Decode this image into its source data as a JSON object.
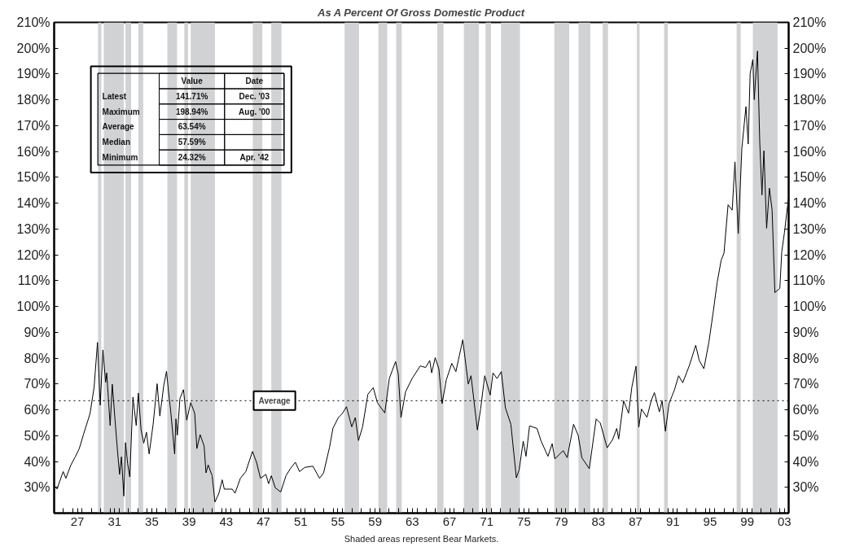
{
  "chart_data": {
    "type": "line",
    "title": "As A Percent Of Gross Domestic Product",
    "xlim": [
      1924.5,
      2003.45
    ],
    "ylim": [
      20,
      210
    ],
    "y2lim": [
      20,
      210
    ],
    "xticks": [
      {
        "value": 1925.5,
        "label": null
      },
      {
        "value": 1926.5,
        "label": null
      },
      {
        "value": 1927,
        "label": "27"
      },
      {
        "value": 1927.5,
        "label": null
      },
      {
        "value": 1928.5,
        "label": null
      },
      {
        "value": 1929.5,
        "label": null
      },
      {
        "value": 1930.5,
        "label": null
      },
      {
        "value": 1931,
        "label": "31"
      },
      {
        "value": 1931.5,
        "label": null
      },
      {
        "value": 1932.5,
        "label": null
      },
      {
        "value": 1933.5,
        "label": null
      },
      {
        "value": 1934.5,
        "label": null
      },
      {
        "value": 1935,
        "label": "35"
      },
      {
        "value": 1935.5,
        "label": null
      },
      {
        "value": 1936.5,
        "label": null
      },
      {
        "value": 1937.5,
        "label": null
      },
      {
        "value": 1938.5,
        "label": null
      },
      {
        "value": 1939,
        "label": "39"
      },
      {
        "value": 1939.5,
        "label": null
      },
      {
        "value": 1940.5,
        "label": null
      },
      {
        "value": 1941.5,
        "label": null
      },
      {
        "value": 1942.5,
        "label": null
      },
      {
        "value": 1943,
        "label": "43"
      },
      {
        "value": 1943.5,
        "label": null
      },
      {
        "value": 1944.5,
        "label": null
      },
      {
        "value": 1945.5,
        "label": null
      },
      {
        "value": 1946.5,
        "label": null
      },
      {
        "value": 1947,
        "label": "47"
      },
      {
        "value": 1947.5,
        "label": null
      },
      {
        "value": 1948.5,
        "label": null
      },
      {
        "value": 1949.5,
        "label": null
      },
      {
        "value": 1950.5,
        "label": null
      },
      {
        "value": 1951,
        "label": "51"
      },
      {
        "value": 1951.5,
        "label": null
      },
      {
        "value": 1952.5,
        "label": null
      },
      {
        "value": 1953.5,
        "label": null
      },
      {
        "value": 1954.5,
        "label": null
      },
      {
        "value": 1955,
        "label": "55"
      },
      {
        "value": 1955.5,
        "label": null
      },
      {
        "value": 1956.5,
        "label": null
      },
      {
        "value": 1957.5,
        "label": null
      },
      {
        "value": 1958.5,
        "label": null
      },
      {
        "value": 1959,
        "label": "59"
      },
      {
        "value": 1959.5,
        "label": null
      },
      {
        "value": 1960.5,
        "label": null
      },
      {
        "value": 1961.5,
        "label": null
      },
      {
        "value": 1962.5,
        "label": null
      },
      {
        "value": 1963,
        "label": "63"
      },
      {
        "value": 1963.5,
        "label": null
      },
      {
        "value": 1964.5,
        "label": null
      },
      {
        "value": 1965.5,
        "label": null
      },
      {
        "value": 1966.5,
        "label": null
      },
      {
        "value": 1967,
        "label": "67"
      },
      {
        "value": 1967.5,
        "label": null
      },
      {
        "value": 1968.5,
        "label": null
      },
      {
        "value": 1969.5,
        "label": null
      },
      {
        "value": 1970.5,
        "label": null
      },
      {
        "value": 1971,
        "label": "71"
      },
      {
        "value": 1971.5,
        "label": null
      },
      {
        "value": 1972.5,
        "label": null
      },
      {
        "value": 1973.5,
        "label": null
      },
      {
        "value": 1974.5,
        "label": null
      },
      {
        "value": 1975,
        "label": "75"
      },
      {
        "value": 1975.5,
        "label": null
      },
      {
        "value": 1976.5,
        "label": null
      },
      {
        "value": 1977.5,
        "label": null
      },
      {
        "value": 1978.5,
        "label": null
      },
      {
        "value": 1979,
        "label": "79"
      },
      {
        "value": 1979.5,
        "label": null
      },
      {
        "value": 1980.5,
        "label": null
      },
      {
        "value": 1981.5,
        "label": null
      },
      {
        "value": 1982.5,
        "label": null
      },
      {
        "value": 1983,
        "label": "83"
      },
      {
        "value": 1983.5,
        "label": null
      },
      {
        "value": 1984.5,
        "label": null
      },
      {
        "value": 1985.5,
        "label": null
      },
      {
        "value": 1986.5,
        "label": null
      },
      {
        "value": 1987,
        "label": "87"
      },
      {
        "value": 1987.5,
        "label": null
      },
      {
        "value": 1988.5,
        "label": null
      },
      {
        "value": 1989.5,
        "label": null
      },
      {
        "value": 1990.5,
        "label": null
      },
      {
        "value": 1991,
        "label": "91"
      },
      {
        "value": 1991.5,
        "label": null
      },
      {
        "value": 1992.5,
        "label": null
      },
      {
        "value": 1993.5,
        "label": null
      },
      {
        "value": 1994.5,
        "label": null
      },
      {
        "value": 1995,
        "label": "95"
      },
      {
        "value": 1995.5,
        "label": null
      },
      {
        "value": 1996.5,
        "label": null
      },
      {
        "value": 1997.5,
        "label": null
      },
      {
        "value": 1998.5,
        "label": null
      },
      {
        "value": 1999,
        "label": "99"
      },
      {
        "value": 1999.5,
        "label": null
      },
      {
        "value": 2000.5,
        "label": null
      },
      {
        "value": 2001.5,
        "label": null
      },
      {
        "value": 2002.5,
        "label": null
      },
      {
        "value": 2003,
        "label": "03"
      }
    ],
    "yticks": [
      {
        "value": 30,
        "label": "30%"
      },
      {
        "value": 40,
        "label": "40%"
      },
      {
        "value": 50,
        "label": "50%"
      },
      {
        "value": 60,
        "label": "60%"
      },
      {
        "value": 70,
        "label": "70%"
      },
      {
        "value": 80,
        "label": "80%"
      },
      {
        "value": 90,
        "label": "90%"
      },
      {
        "value": 100,
        "label": "100%"
      },
      {
        "value": 110,
        "label": "110%"
      },
      {
        "value": 120,
        "label": "120%"
      },
      {
        "value": 130,
        "label": "130%"
      },
      {
        "value": 140,
        "label": "140%"
      },
      {
        "value": 150,
        "label": "150%"
      },
      {
        "value": 160,
        "label": "160%"
      },
      {
        "value": 170,
        "label": "170%"
      },
      {
        "value": 180,
        "label": "180%"
      },
      {
        "value": 190,
        "label": "190%"
      },
      {
        "value": 200,
        "label": "200%"
      },
      {
        "value": 210,
        "label": "210%"
      }
    ],
    "y2ticks": [
      {
        "value": 30,
        "label": "30%"
      },
      {
        "value": 40,
        "label": "40%"
      },
      {
        "value": 50,
        "label": "50%"
      },
      {
        "value": 60,
        "label": "60%"
      },
      {
        "value": 70,
        "label": "70%"
      },
      {
        "value": 80,
        "label": "80%"
      },
      {
        "value": 90,
        "label": "90%"
      },
      {
        "value": 100,
        "label": "100%"
      },
      {
        "value": 110,
        "label": "110%"
      },
      {
        "value": 120,
        "label": "120%"
      },
      {
        "value": 130,
        "label": "130%"
      },
      {
        "value": 140,
        "label": "140%"
      },
      {
        "value": 150,
        "label": "150%"
      },
      {
        "value": 160,
        "label": "160%"
      },
      {
        "value": 170,
        "label": "170%"
      },
      {
        "value": 180,
        "label": "180%"
      },
      {
        "value": 190,
        "label": "190%"
      },
      {
        "value": 200,
        "label": "200%"
      },
      {
        "value": 210,
        "label": "210%"
      }
    ],
    "x": [
      1924.6,
      1924.8,
      1925.47,
      1925.76,
      1926.28,
      1926.77,
      1927.2,
      1927.63,
      1928.36,
      1928.79,
      1929.16,
      1929.45,
      1929.74,
      1930.03,
      1930.15,
      1930.52,
      1930.75,
      1931.01,
      1931.3,
      1931.53,
      1931.73,
      1931.99,
      1932.17,
      1932.4,
      1932.63,
      1932.97,
      1933.32,
      1933.55,
      1933.84,
      1934.13,
      1934.42,
      1934.71,
      1935.14,
      1935.57,
      1935.86,
      1936.29,
      1936.58,
      1936.87,
      1937.01,
      1937.45,
      1937.59,
      1937.74,
      1938.02,
      1938.4,
      1938.75,
      1939.18,
      1939.61,
      1939.84,
      1940.19,
      1940.62,
      1940.82,
      1941.05,
      1941.48,
      1941.78,
      1942.21,
      1942.56,
      1942.79,
      1943.65,
      1943.94,
      1944.52,
      1945.1,
      1945.82,
      1946.25,
      1946.68,
      1947.26,
      1947.55,
      1947.84,
      1948.27,
      1948.85,
      1949.42,
      1949.86,
      1950.43,
      1950.87,
      1951.44,
      1952.31,
      1953.03,
      1953.46,
      1954.1,
      1954.47,
      1955.05,
      1955.48,
      1955.92,
      1956.49,
      1956.87,
      1957.21,
      1957.65,
      1958.22,
      1958.8,
      1959.24,
      1960.04,
      1960.53,
      1961.2,
      1961.49,
      1961.78,
      1962.27,
      1962.99,
      1963.85,
      1964.43,
      1964.87,
      1965.08,
      1965.46,
      1965.85,
      1966.2,
      1966.65,
      1967.24,
      1967.68,
      1968.42,
      1969.01,
      1969.31,
      1969.99,
      1970.34,
      1970.78,
      1971.37,
      1971.67,
      1972.11,
      1972.56,
      1973.0,
      1973.59,
      1974.18,
      1974.48,
      1974.92,
      1975.22,
      1975.6,
      1976.4,
      1976.84,
      1977.58,
      1978.03,
      1978.32,
      1979.21,
      1979.65,
      1980.33,
      1980.83,
      1981.22,
      1982.02,
      1982.76,
      1983.2,
      1983.94,
      1984.53,
      1984.97,
      1985.18,
      1985.71,
      1986.24,
      1986.6,
      1987.04,
      1987.34,
      1987.63,
      1988.22,
      1988.67,
      1989.02,
      1989.55,
      1989.85,
      1990.2,
      1990.59,
      1991.18,
      1991.62,
      1992.07,
      1992.81,
      1993.46,
      1993.84,
      1994.34,
      1994.87,
      1995.32,
      1995.76,
      1996.2,
      1996.5,
      1996.94,
      1997.38,
      1997.68,
      1998.03,
      1998.42,
      1998.86,
      1999.1,
      1999.31,
      1999.6,
      1999.75,
      2000.1,
      2000.34,
      2000.58,
      2000.79,
      2001.08,
      2001.38,
      2001.67,
      2001.97,
      2002.5,
      2002.71,
      2003.0,
      2003.42
    ],
    "series": [
      {
        "color": "#000000",
        "values": [
          30.3,
          29.3,
          36.1,
          33.5,
          38.5,
          41.8,
          45.0,
          50.2,
          58.6,
          68.6,
          86.1,
          61.8,
          83.2,
          70.7,
          74.3,
          53.9,
          69.9,
          57.6,
          44.5,
          35.0,
          41.8,
          26.6,
          47.3,
          39.2,
          34.0,
          64.9,
          53.9,
          66.5,
          52.3,
          47.1,
          51.3,
          42.9,
          54.4,
          70.1,
          57.6,
          69.6,
          74.9,
          64.4,
          60.2,
          42.9,
          56.5,
          50.2,
          64.4,
          67.8,
          56.0,
          62.8,
          58.6,
          45.0,
          50.4,
          46.0,
          35.6,
          38.7,
          34.5,
          24.3,
          27.7,
          32.9,
          29.3,
          29.3,
          27.7,
          33.5,
          36.1,
          43.9,
          39.7,
          33.5,
          35.0,
          31.4,
          34.5,
          29.8,
          28.2,
          34.5,
          37.1,
          39.7,
          36.1,
          37.7,
          38.2,
          33.5,
          35.6,
          45.5,
          52.9,
          57.0,
          58.6,
          61.2,
          53.4,
          57.0,
          48.1,
          53.4,
          66.0,
          68.6,
          62.8,
          58.8,
          72.2,
          78.7,
          73.8,
          57.0,
          67.0,
          72.2,
          77.0,
          76.4,
          79.1,
          74.3,
          80.2,
          75.9,
          62.4,
          71.6,
          78.0,
          74.8,
          87.1,
          70.0,
          73.2,
          52.2,
          60.3,
          73.2,
          65.7,
          74.3,
          72.1,
          74.8,
          60.8,
          54.4,
          33.7,
          36.7,
          47.9,
          42.0,
          53.8,
          52.8,
          47.9,
          42.0,
          46.9,
          41.0,
          44.2,
          41.5,
          54.4,
          50.1,
          41.5,
          37.2,
          56.5,
          54.9,
          45.3,
          48.5,
          52.8,
          48.7,
          63.5,
          58.7,
          68.9,
          76.9,
          53.3,
          60.3,
          57.1,
          63.5,
          66.7,
          59.2,
          63.5,
          51.7,
          62.4,
          67.8,
          73.2,
          70.5,
          77.5,
          85.0,
          79.1,
          75.9,
          86.1,
          97.3,
          109.2,
          118.0,
          120.7,
          139.4,
          137.3,
          156.0,
          128.2,
          161.3,
          177.4,
          162.9,
          190.2,
          195.6,
          180.1,
          198.9,
          164.0,
          143.2,
          160.3,
          130.3,
          145.8,
          137.3,
          105.4,
          107.0,
          121.2,
          128.7,
          141.7
        ]
      }
    ],
    "bands": [
      {
        "axis": "x",
        "from": 1929.22,
        "to": 1929.57,
        "color": "#d1d2d4"
      },
      {
        "axis": "x",
        "from": 1929.83,
        "to": 1932.0,
        "color": "#d1d2d4"
      },
      {
        "axis": "x",
        "from": 1932.17,
        "to": 1932.77,
        "color": "#d1d2d4"
      },
      {
        "axis": "x",
        "from": 1933.55,
        "to": 1934.07,
        "color": "#d1d2d4"
      },
      {
        "axis": "x",
        "from": 1936.67,
        "to": 1937.71,
        "color": "#d1d2d4"
      },
      {
        "axis": "x",
        "from": 1938.49,
        "to": 1938.89,
        "color": "#d1d2d4"
      },
      {
        "axis": "x",
        "from": 1939.18,
        "to": 1941.78,
        "color": "#d1d2d4"
      },
      {
        "axis": "x",
        "from": 1945.85,
        "to": 1946.88,
        "color": "#d1d2d4"
      },
      {
        "axis": "x",
        "from": 1947.84,
        "to": 1948.93,
        "color": "#d1d2d4"
      },
      {
        "axis": "x",
        "from": 1955.72,
        "to": 1957.27,
        "color": "#d1d2d4"
      },
      {
        "axis": "x",
        "from": 1959.35,
        "to": 1960.3,
        "color": "#d1d2d4"
      },
      {
        "axis": "x",
        "from": 1961.26,
        "to": 1961.86,
        "color": "#d1d2d4"
      },
      {
        "axis": "x",
        "from": 1965.67,
        "to": 1966.35,
        "color": "#d1d2d4"
      },
      {
        "axis": "x",
        "from": 1968.54,
        "to": 1970.16,
        "color": "#d1d2d4"
      },
      {
        "axis": "x",
        "from": 1970.87,
        "to": 1971.46,
        "color": "#d1d2d4"
      },
      {
        "axis": "x",
        "from": 1972.53,
        "to": 1974.57,
        "color": "#d1d2d4"
      },
      {
        "axis": "x",
        "from": 1978.26,
        "to": 1979.86,
        "color": "#d1d2d4"
      },
      {
        "axis": "x",
        "from": 1980.86,
        "to": 1982.13,
        "color": "#d1d2d4"
      },
      {
        "axis": "x",
        "from": 1983.46,
        "to": 1984.03,
        "color": "#d1d2d4"
      },
      {
        "axis": "x",
        "from": 1987.13,
        "to": 1987.43,
        "color": "#d1d2d4"
      },
      {
        "axis": "x",
        "from": 1990.06,
        "to": 1990.47,
        "color": "#d1d2d4"
      },
      {
        "axis": "x",
        "from": 1997.86,
        "to": 1998.3,
        "color": "#d1d2d4"
      },
      {
        "axis": "x",
        "from": 1999.6,
        "to": 2002.26,
        "color": "#d1d2d4"
      }
    ],
    "ref_lines": [
      {
        "axis": "y",
        "value": 63.54,
        "label": "Average",
        "line_style": "dotted",
        "color": "#000000"
      }
    ],
    "annotations": [
      null,
      "Value",
      "Date",
      "Latest",
      "141.71%",
      "Dec. '03",
      "Maximum",
      "198.94%",
      "Aug. '00",
      "Average",
      "63.54%",
      null,
      "Median",
      "57.59%",
      null,
      "Minimum",
      "24.32%",
      "Apr. '42",
      "Shaded areas represent Bear Markets."
    ],
    "grid": false
  }
}
